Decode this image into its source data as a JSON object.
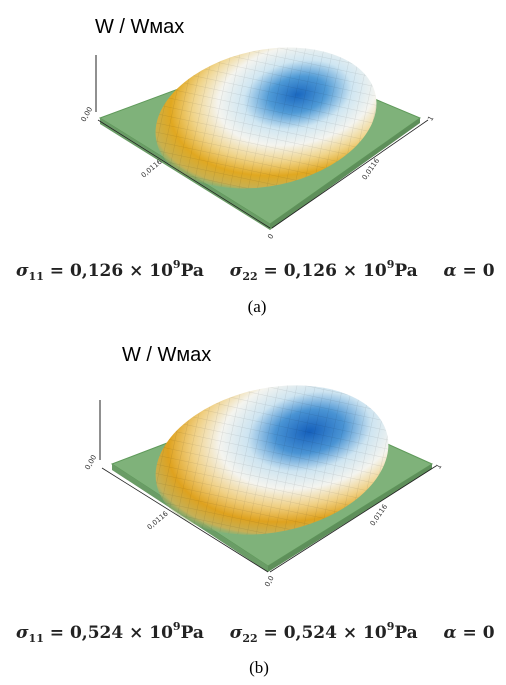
{
  "panel_a": {
    "title": "W / Wмах",
    "axis_ticks": {
      "z_tick": "0,00",
      "x_tick": "0,0116",
      "y_tick": "0,0116",
      "x_end": "0",
      "y_end": "1"
    },
    "formula": {
      "s11_symbol": "σ",
      "s11_sub": "11",
      "s11_value": "= 0,126 × 10",
      "s11_exp": "9",
      "s11_unit": "Pa",
      "s22_symbol": "σ",
      "s22_sub": "22",
      "s22_value": "= 0,126 × 10",
      "s22_exp": "9",
      "s22_unit": "Pa",
      "alpha_symbol": "α",
      "alpha_value": "= 0"
    },
    "caption": "(a)"
  },
  "panel_b": {
    "title": "W / Wмах",
    "axis_ticks": {
      "z_tick": "0,00",
      "x_tick": "0,0116",
      "y_tick": "0,0116",
      "x_end": "0,0",
      "y_end": "1"
    },
    "formula": {
      "s11_symbol": "σ",
      "s11_sub": "11",
      "s11_value": "= 0,524 × 10",
      "s11_exp": "9",
      "s11_unit": "Pa",
      "s22_symbol": "σ",
      "s22_sub": "22",
      "s22_value": "= 0,524 × 10",
      "s22_exp": "9",
      "s22_unit": "Pa",
      "alpha_symbol": "α",
      "alpha_value": "= 0"
    },
    "caption": "(b)"
  },
  "colors": {
    "plate_green": "#7fb27a",
    "ring_yellow": "#e0a820",
    "dome_white": "#f2f2ee",
    "peak_blue": "#1a68c0"
  }
}
